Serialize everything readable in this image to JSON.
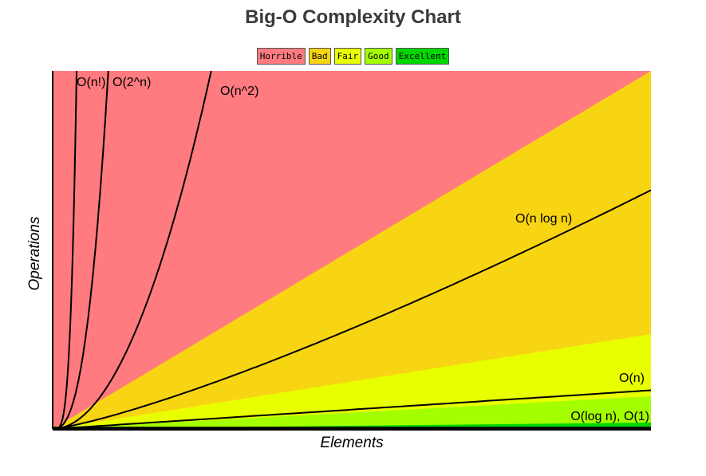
{
  "title": "Big-O Complexity Chart",
  "legend": [
    {
      "label": "Horrible",
      "color": "#ff7b7f"
    },
    {
      "label": "Bad",
      "color": "#f8d512"
    },
    {
      "label": "Fair",
      "color": "#e8ff00"
    },
    {
      "label": "Good",
      "color": "#a4ff00"
    },
    {
      "label": "Excellent",
      "color": "#00d600"
    }
  ],
  "chart_data": {
    "type": "line",
    "title": "Big-O Complexity Chart",
    "xlabel": "Elements",
    "ylabel": "Operations",
    "grid": false,
    "legend_position": "top-center",
    "regions": [
      {
        "name": "Horrible",
        "color": "#ff7b7f"
      },
      {
        "name": "Bad",
        "color": "#f8d512"
      },
      {
        "name": "Fair",
        "color": "#e8ff00"
      },
      {
        "name": "Good",
        "color": "#a4ff00"
      },
      {
        "name": "Excellent",
        "color": "#00d600"
      }
    ],
    "series": [
      {
        "name": "O(n!)",
        "label": "O(n!)",
        "fn": "factorial"
      },
      {
        "name": "O(2^n)",
        "label": "O(2^n)",
        "fn": "exp2"
      },
      {
        "name": "O(n^2)",
        "label": "O(n^2)",
        "fn": "square"
      },
      {
        "name": "O(n log n)",
        "label": "O(n log n)",
        "fn": "nlogn"
      },
      {
        "name": "O(n)",
        "label": "O(n)",
        "fn": "linear"
      },
      {
        "name": "O(log n), O(1)",
        "label": "O(log n), O(1)",
        "fn": "const"
      }
    ]
  }
}
